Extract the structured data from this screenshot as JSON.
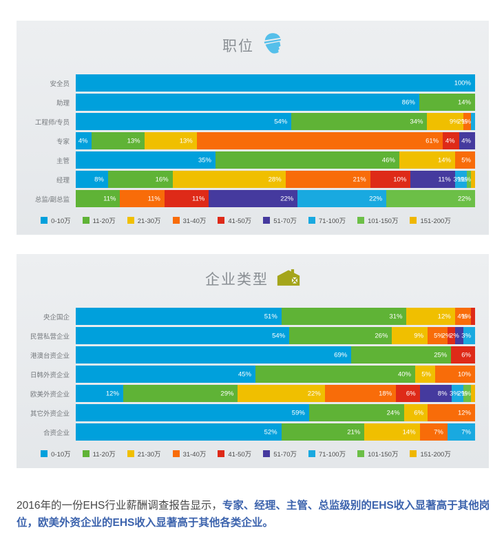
{
  "colors": {
    "0-10万": "#00a0dc",
    "11-20万": "#5fb336",
    "21-30万": "#f0bf00",
    "31-40万": "#f86c09",
    "41-50万": "#de2a18",
    "51-70万": "#453a9e",
    "71-100万": "#19a9e0",
    "101-150万": "#6cbf47",
    "151-200万": "#efb700"
  },
  "chart_data": [
    {
      "type": "bar",
      "variant": "horizontal-stacked-percentage",
      "title": "职位",
      "icon": "construction-worker-icon",
      "unit": "%",
      "legend_position": "bottom",
      "legend": [
        "0-10万",
        "11-20万",
        "21-30万",
        "31-40万",
        "41-50万",
        "51-70万",
        "71-100万",
        "101-150万",
        "151-200万"
      ],
      "categories": [
        "安全员",
        "助理",
        "工程师/专员",
        "专家",
        "主管",
        "经理",
        "总监/副总监"
      ],
      "rows": [
        {
          "category": "安全员",
          "segments": [
            {
              "bucket": "0-10万",
              "value": 100
            }
          ]
        },
        {
          "category": "助理",
          "segments": [
            {
              "bucket": "0-10万",
              "value": 86
            },
            {
              "bucket": "11-20万",
              "value": 14
            }
          ]
        },
        {
          "category": "工程师/专员",
          "segments": [
            {
              "bucket": "0-10万",
              "value": 54
            },
            {
              "bucket": "11-20万",
              "value": 34
            },
            {
              "bucket": "21-30万",
              "value": 9
            },
            {
              "bucket": "31-40万",
              "value": 2
            },
            {
              "bucket": "71-100万",
              "value": 1
            }
          ]
        },
        {
          "category": "专家",
          "segments": [
            {
              "bucket": "0-10万",
              "value": 4
            },
            {
              "bucket": "11-20万",
              "value": 13
            },
            {
              "bucket": "21-30万",
              "value": 13
            },
            {
              "bucket": "31-40万",
              "value": 61
            },
            {
              "bucket": "41-50万",
              "value": 4
            },
            {
              "bucket": "51-70万",
              "value": 4
            }
          ]
        },
        {
          "category": "主管",
          "segments": [
            {
              "bucket": "0-10万",
              "value": 35
            },
            {
              "bucket": "11-20万",
              "value": 46
            },
            {
              "bucket": "21-30万",
              "value": 14
            },
            {
              "bucket": "31-40万",
              "value": 5
            }
          ]
        },
        {
          "category": "经理",
          "segments": [
            {
              "bucket": "0-10万",
              "value": 8
            },
            {
              "bucket": "11-20万",
              "value": 16
            },
            {
              "bucket": "21-30万",
              "value": 28
            },
            {
              "bucket": "31-40万",
              "value": 21
            },
            {
              "bucket": "41-50万",
              "value": 10
            },
            {
              "bucket": "51-70万",
              "value": 11
            },
            {
              "bucket": "71-100万",
              "value": 3
            },
            {
              "bucket": "101-150万",
              "value": 1
            },
            {
              "bucket": "151-200万",
              "value": 1
            }
          ]
        },
        {
          "category": "总监/副总监",
          "segments": [
            {
              "bucket": "11-20万",
              "value": 11
            },
            {
              "bucket": "31-40万",
              "value": 11
            },
            {
              "bucket": "41-50万",
              "value": 11
            },
            {
              "bucket": "51-70万",
              "value": 22
            },
            {
              "bucket": "71-100万",
              "value": 22
            },
            {
              "bucket": "101-150万",
              "value": 22
            }
          ]
        }
      ]
    },
    {
      "type": "bar",
      "variant": "horizontal-stacked-percentage",
      "title": "企业类型",
      "icon": "barn-icon",
      "unit": "%",
      "legend_position": "bottom",
      "legend": [
        "0-10万",
        "11-20万",
        "21-30万",
        "31-40万",
        "41-50万",
        "51-70万",
        "71-100万",
        "101-150万",
        "151-200万"
      ],
      "categories": [
        "央企国企",
        "民营私营企业",
        "港澳台资企业",
        "日韩外资企业",
        "欧美外资企业",
        "其它外资企业",
        "合资企业"
      ],
      "rows": [
        {
          "category": "央企国企",
          "segments": [
            {
              "bucket": "0-10万",
              "value": 51
            },
            {
              "bucket": "11-20万",
              "value": 31
            },
            {
              "bucket": "21-30万",
              "value": 12
            },
            {
              "bucket": "31-40万",
              "value": 4
            },
            {
              "bucket": "41-50万",
              "value": 1
            }
          ]
        },
        {
          "category": "民营私营企业",
          "segments": [
            {
              "bucket": "0-10万",
              "value": 54
            },
            {
              "bucket": "11-20万",
              "value": 26
            },
            {
              "bucket": "21-30万",
              "value": 9
            },
            {
              "bucket": "31-40万",
              "value": 5
            },
            {
              "bucket": "41-50万",
              "value": 2
            },
            {
              "bucket": "51-70万",
              "value": 2
            },
            {
              "bucket": "71-100万",
              "value": 3
            }
          ]
        },
        {
          "category": "港澳台资企业",
          "segments": [
            {
              "bucket": "0-10万",
              "value": 69
            },
            {
              "bucket": "11-20万",
              "value": 25
            },
            {
              "bucket": "41-50万",
              "value": 6
            }
          ]
        },
        {
          "category": "日韩外资企业",
          "segments": [
            {
              "bucket": "0-10万",
              "value": 45
            },
            {
              "bucket": "11-20万",
              "value": 40
            },
            {
              "bucket": "21-30万",
              "value": 5
            },
            {
              "bucket": "31-40万",
              "value": 10
            }
          ]
        },
        {
          "category": "欧美外资企业",
          "segments": [
            {
              "bucket": "0-10万",
              "value": 12
            },
            {
              "bucket": "11-20万",
              "value": 29
            },
            {
              "bucket": "21-30万",
              "value": 22
            },
            {
              "bucket": "31-40万",
              "value": 18
            },
            {
              "bucket": "41-50万",
              "value": 6
            },
            {
              "bucket": "51-70万",
              "value": 8
            },
            {
              "bucket": "71-100万",
              "value": 3
            },
            {
              "bucket": "101-150万",
              "value": 2
            },
            {
              "bucket": "151-200万",
              "value": 1
            }
          ]
        },
        {
          "category": "其它外资企业",
          "segments": [
            {
              "bucket": "0-10万",
              "value": 59
            },
            {
              "bucket": "11-20万",
              "value": 24
            },
            {
              "bucket": "21-30万",
              "value": 6
            },
            {
              "bucket": "31-40万",
              "value": 12
            }
          ]
        },
        {
          "category": "合资企业",
          "segments": [
            {
              "bucket": "0-10万",
              "value": 52
            },
            {
              "bucket": "11-20万",
              "value": 21
            },
            {
              "bucket": "21-30万",
              "value": 14
            },
            {
              "bucket": "31-40万",
              "value": 7
            },
            {
              "bucket": "71-100万",
              "value": 7
            }
          ]
        }
      ]
    }
  ],
  "footer": {
    "plain": "2016年的一份EHS行业薪酬调查报告显示，",
    "highlight": "专家、经理、主管、总监级别的EHS收入显著高于其他岗位，欧美外资企业的EHS收入显著高于其他各类企业。",
    "highlight_color": "#3c63ad"
  }
}
